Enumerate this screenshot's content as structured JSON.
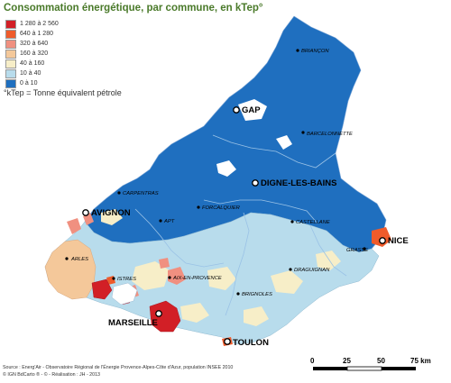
{
  "title": "Consommation énergétique, par commune, en kTep°",
  "legend": [
    {
      "label": "1 280 à 2 560",
      "color": "#d21f26"
    },
    {
      "label": "640 à 1 280",
      "color": "#ef5b2b"
    },
    {
      "label": "320 à 640",
      "color": "#f09080"
    },
    {
      "label": "160 à 320",
      "color": "#f4c89a"
    },
    {
      "label": "40 à 160",
      "color": "#f7eec8"
    },
    {
      "label": "10 à 40",
      "color": "#b8dcec"
    },
    {
      "label": "0 à 10",
      "color": "#1f6fbf"
    }
  ],
  "note": "°kTep = Tonne équivalent pétrole",
  "major_cities": [
    {
      "name": "GAP"
    },
    {
      "name": "DIGNE-LES-BAINS"
    },
    {
      "name": "AVIGNON"
    },
    {
      "name": "NICE"
    },
    {
      "name": "MARSEILLE"
    },
    {
      "name": "TOULON"
    }
  ],
  "minor_cities": [
    {
      "name": "BRIANÇON"
    },
    {
      "name": "BARCELONNETTE"
    },
    {
      "name": "CARPENTRAS"
    },
    {
      "name": "FORCALQUIER"
    },
    {
      "name": "APT"
    },
    {
      "name": "CASTELLANE"
    },
    {
      "name": "GRASSE"
    },
    {
      "name": "ARLES"
    },
    {
      "name": "ISTRES"
    },
    {
      "name": "AIX-EN-PROVENCE"
    },
    {
      "name": "DRAGUIGNAN"
    },
    {
      "name": "BRIGNOLES"
    }
  ],
  "scale": {
    "ticks": [
      "0",
      "25",
      "50",
      "75 km"
    ]
  },
  "source": [
    "Source : Energ'Air - Observatoire Régional de l'Énergie Provence-Alpes-Côte d'Azur, population INSEE 2010",
    "© IGN BdCarto ® - © - Réalisation : JH - 2013"
  ],
  "colors": {
    "water": "#ffffff",
    "border": "#888888",
    "title": "#4a7a2a"
  }
}
